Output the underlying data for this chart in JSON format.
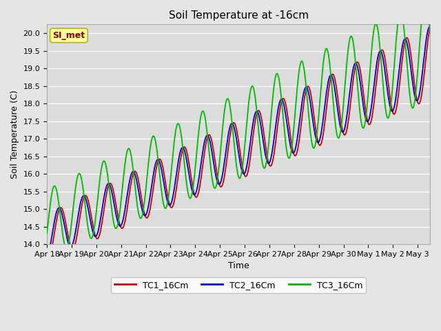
{
  "title": "Soil Temperature at -16cm",
  "xlabel": "Time",
  "ylabel": "Soil Temperature (C)",
  "ylim": [
    14.0,
    20.25
  ],
  "xlim_start": 0,
  "xlim_end": 15.5,
  "background_color": "#e5e5e5",
  "plot_bg_color": "#dcdcdc",
  "grid_color": "#ffffff",
  "legend_label_box": "SI_met",
  "legend_box_facecolor": "#ffff99",
  "legend_box_edgecolor": "#aaaa00",
  "legend_text_color": "#880000",
  "series_colors": [
    "#cc0000",
    "#0000cc",
    "#00bb00"
  ],
  "series_labels": [
    "TC1_16Cm",
    "TC2_16Cm",
    "TC3_16Cm"
  ],
  "tick_labels": [
    "Apr 18",
    "Apr 19",
    "Apr 20",
    "Apr 21",
    "Apr 22",
    "Apr 23",
    "Apr 24",
    "Apr 25",
    "Apr 26",
    "Apr 27",
    "Apr 28",
    "Apr 29",
    "Apr 30",
    "May 1",
    "May 2",
    "May 3"
  ],
  "yticks": [
    14.0,
    14.5,
    15.0,
    15.5,
    16.0,
    16.5,
    17.0,
    17.5,
    18.0,
    18.5,
    19.0,
    19.5,
    20.0
  ],
  "line_width": 1.3,
  "title_fontsize": 11,
  "axis_label_fontsize": 9,
  "tick_fontsize": 8
}
